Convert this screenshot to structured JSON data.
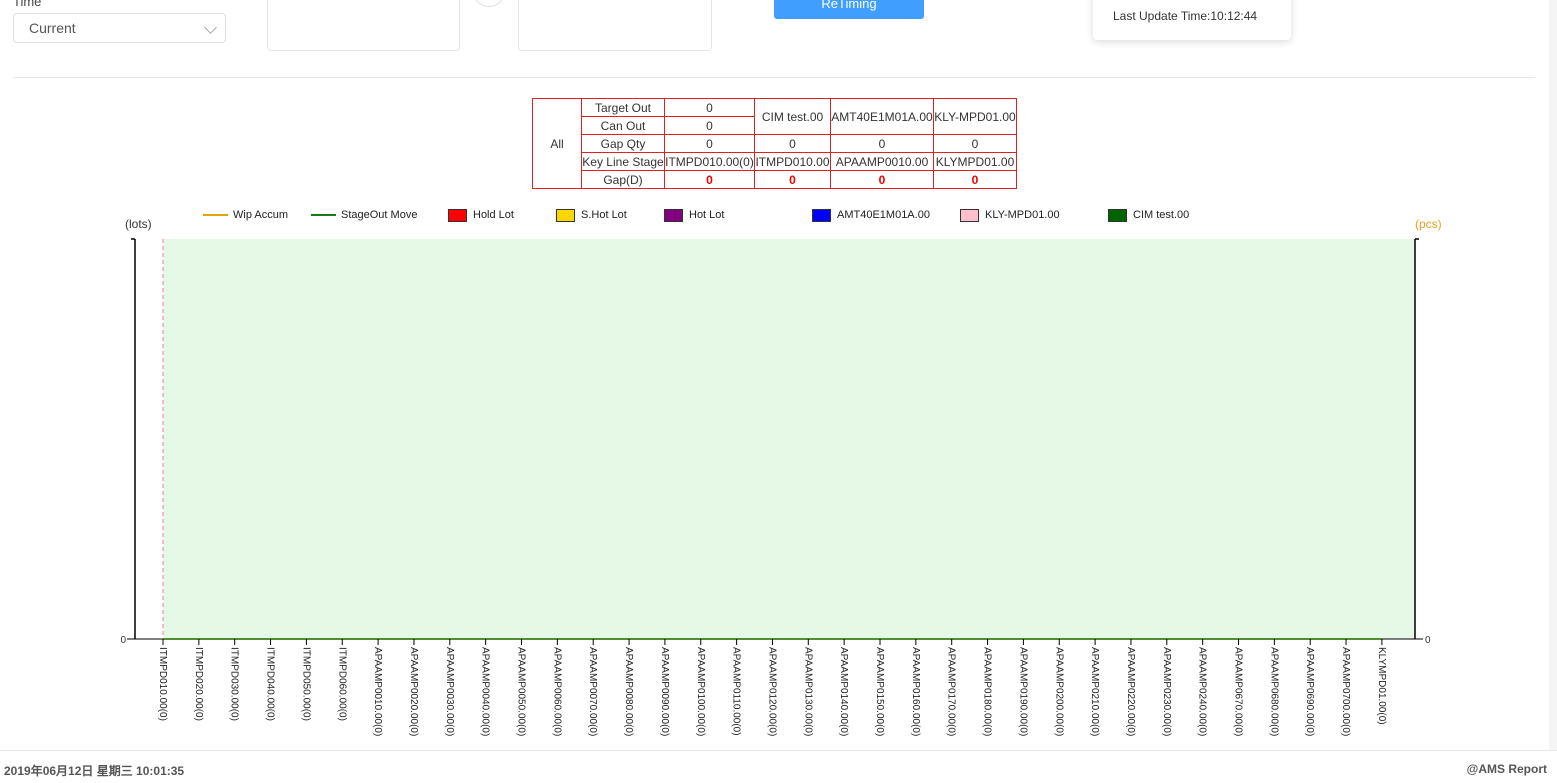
{
  "filters": {
    "time_label": "Time",
    "time_value": "Current",
    "retiming_label": "ReTiming",
    "last_update": "Last Update Time:10:12:44"
  },
  "summary": {
    "group_label": "All",
    "row_labels": [
      "Target Out",
      "Can Out",
      "Gap Qty",
      "Key Line Stage",
      "Gap(D)"
    ],
    "target_out": "0",
    "can_out": "0",
    "columns": [
      "CIM test.00",
      "AMT40E1M01A.00",
      "KLY-MPD01.00"
    ],
    "gap_qty": [
      "0",
      "0",
      "0",
      "0"
    ],
    "key_line_stage": [
      "ITMPD010.00(0)",
      "ITMPD010.00",
      "APAAMP0010.00",
      "KLYMPD01.00"
    ],
    "gap_d": [
      "0",
      "0",
      "0",
      "0"
    ]
  },
  "legend": [
    {
      "label": "Wip Accum",
      "kind": "line",
      "color": "#e5a100"
    },
    {
      "label": "StageOut Move",
      "kind": "line",
      "color": "#1a7a1a"
    },
    {
      "label": "Hold Lot",
      "kind": "box",
      "color": "#ff0000"
    },
    {
      "label": "S.Hot Lot",
      "kind": "box",
      "color": "#ffd700"
    },
    {
      "label": "Hot Lot",
      "kind": "box",
      "color": "#800080"
    },
    {
      "label": "AMT40E1M01A.00",
      "kind": "box",
      "color": "#0000ff"
    },
    {
      "label": "KLY-MPD01.00",
      "kind": "box",
      "color": "#ffc0cb"
    },
    {
      "label": "CIM test.00",
      "kind": "box",
      "color": "#006400"
    }
  ],
  "chart_data": {
    "type": "line",
    "y_left_label": "(lots)",
    "y_right_label": "(pcs)",
    "y_left_ticks": [
      "0"
    ],
    "y_right_ticks": [
      "0"
    ],
    "background_color": "#e6f9e6",
    "x": [
      "ITMPD010.00(0)",
      "ITMPD020.00(0)",
      "ITMPD030.00(0)",
      "ITMPD040.00(0)",
      "ITMPD050.00(0)",
      "ITMPD060.00(0)",
      "APAAMP0010.00(0)",
      "APAAMP0020.00(0)",
      "APAAMP0030.00(0)",
      "APAAMP0040.00(0)",
      "APAAMP0050.00(0)",
      "APAAMP0060.00(0)",
      "APAAMP0070.00(0)",
      "APAAMP0080.00(0)",
      "APAAMP0090.00(0)",
      "APAAMP0100.00(0)",
      "APAAMP0110.00(0)",
      "APAAMP0120.00(0)",
      "APAAMP0130.00(0)",
      "APAAMP0140.00(0)",
      "APAAMP0150.00(0)",
      "APAAMP0160.00(0)",
      "APAAMP0170.00(0)",
      "APAAMP0180.00(0)",
      "APAAMP0190.00(0)",
      "APAAMP0200.00(0)",
      "APAAMP0210.00(0)",
      "APAAMP0220.00(0)",
      "APAAMP0230.00(0)",
      "APAAMP0240.00(0)",
      "APAAMP0670.00(0)",
      "APAAMP0680.00(0)",
      "APAAMP0690.00(0)",
      "APAAMP0700.00(0)",
      "KLYMPD01.00(0)"
    ],
    "series": [
      {
        "name": "Wip Accum",
        "values": [
          0,
          0,
          0,
          0,
          0,
          0,
          0,
          0,
          0,
          0,
          0,
          0,
          0,
          0,
          0,
          0,
          0,
          0,
          0,
          0,
          0,
          0,
          0,
          0,
          0,
          0,
          0,
          0,
          0,
          0,
          0,
          0,
          0,
          0,
          0
        ]
      },
      {
        "name": "StageOut Move",
        "values": [
          0,
          0,
          0,
          0,
          0,
          0,
          0,
          0,
          0,
          0,
          0,
          0,
          0,
          0,
          0,
          0,
          0,
          0,
          0,
          0,
          0,
          0,
          0,
          0,
          0,
          0,
          0,
          0,
          0,
          0,
          0,
          0,
          0,
          0,
          0
        ]
      }
    ],
    "marker_at": "ITMPD010.00(0)"
  },
  "footer": {
    "datetime": "2019年06月12日 星期三 10:01:35",
    "brand": "@AMS Report"
  }
}
